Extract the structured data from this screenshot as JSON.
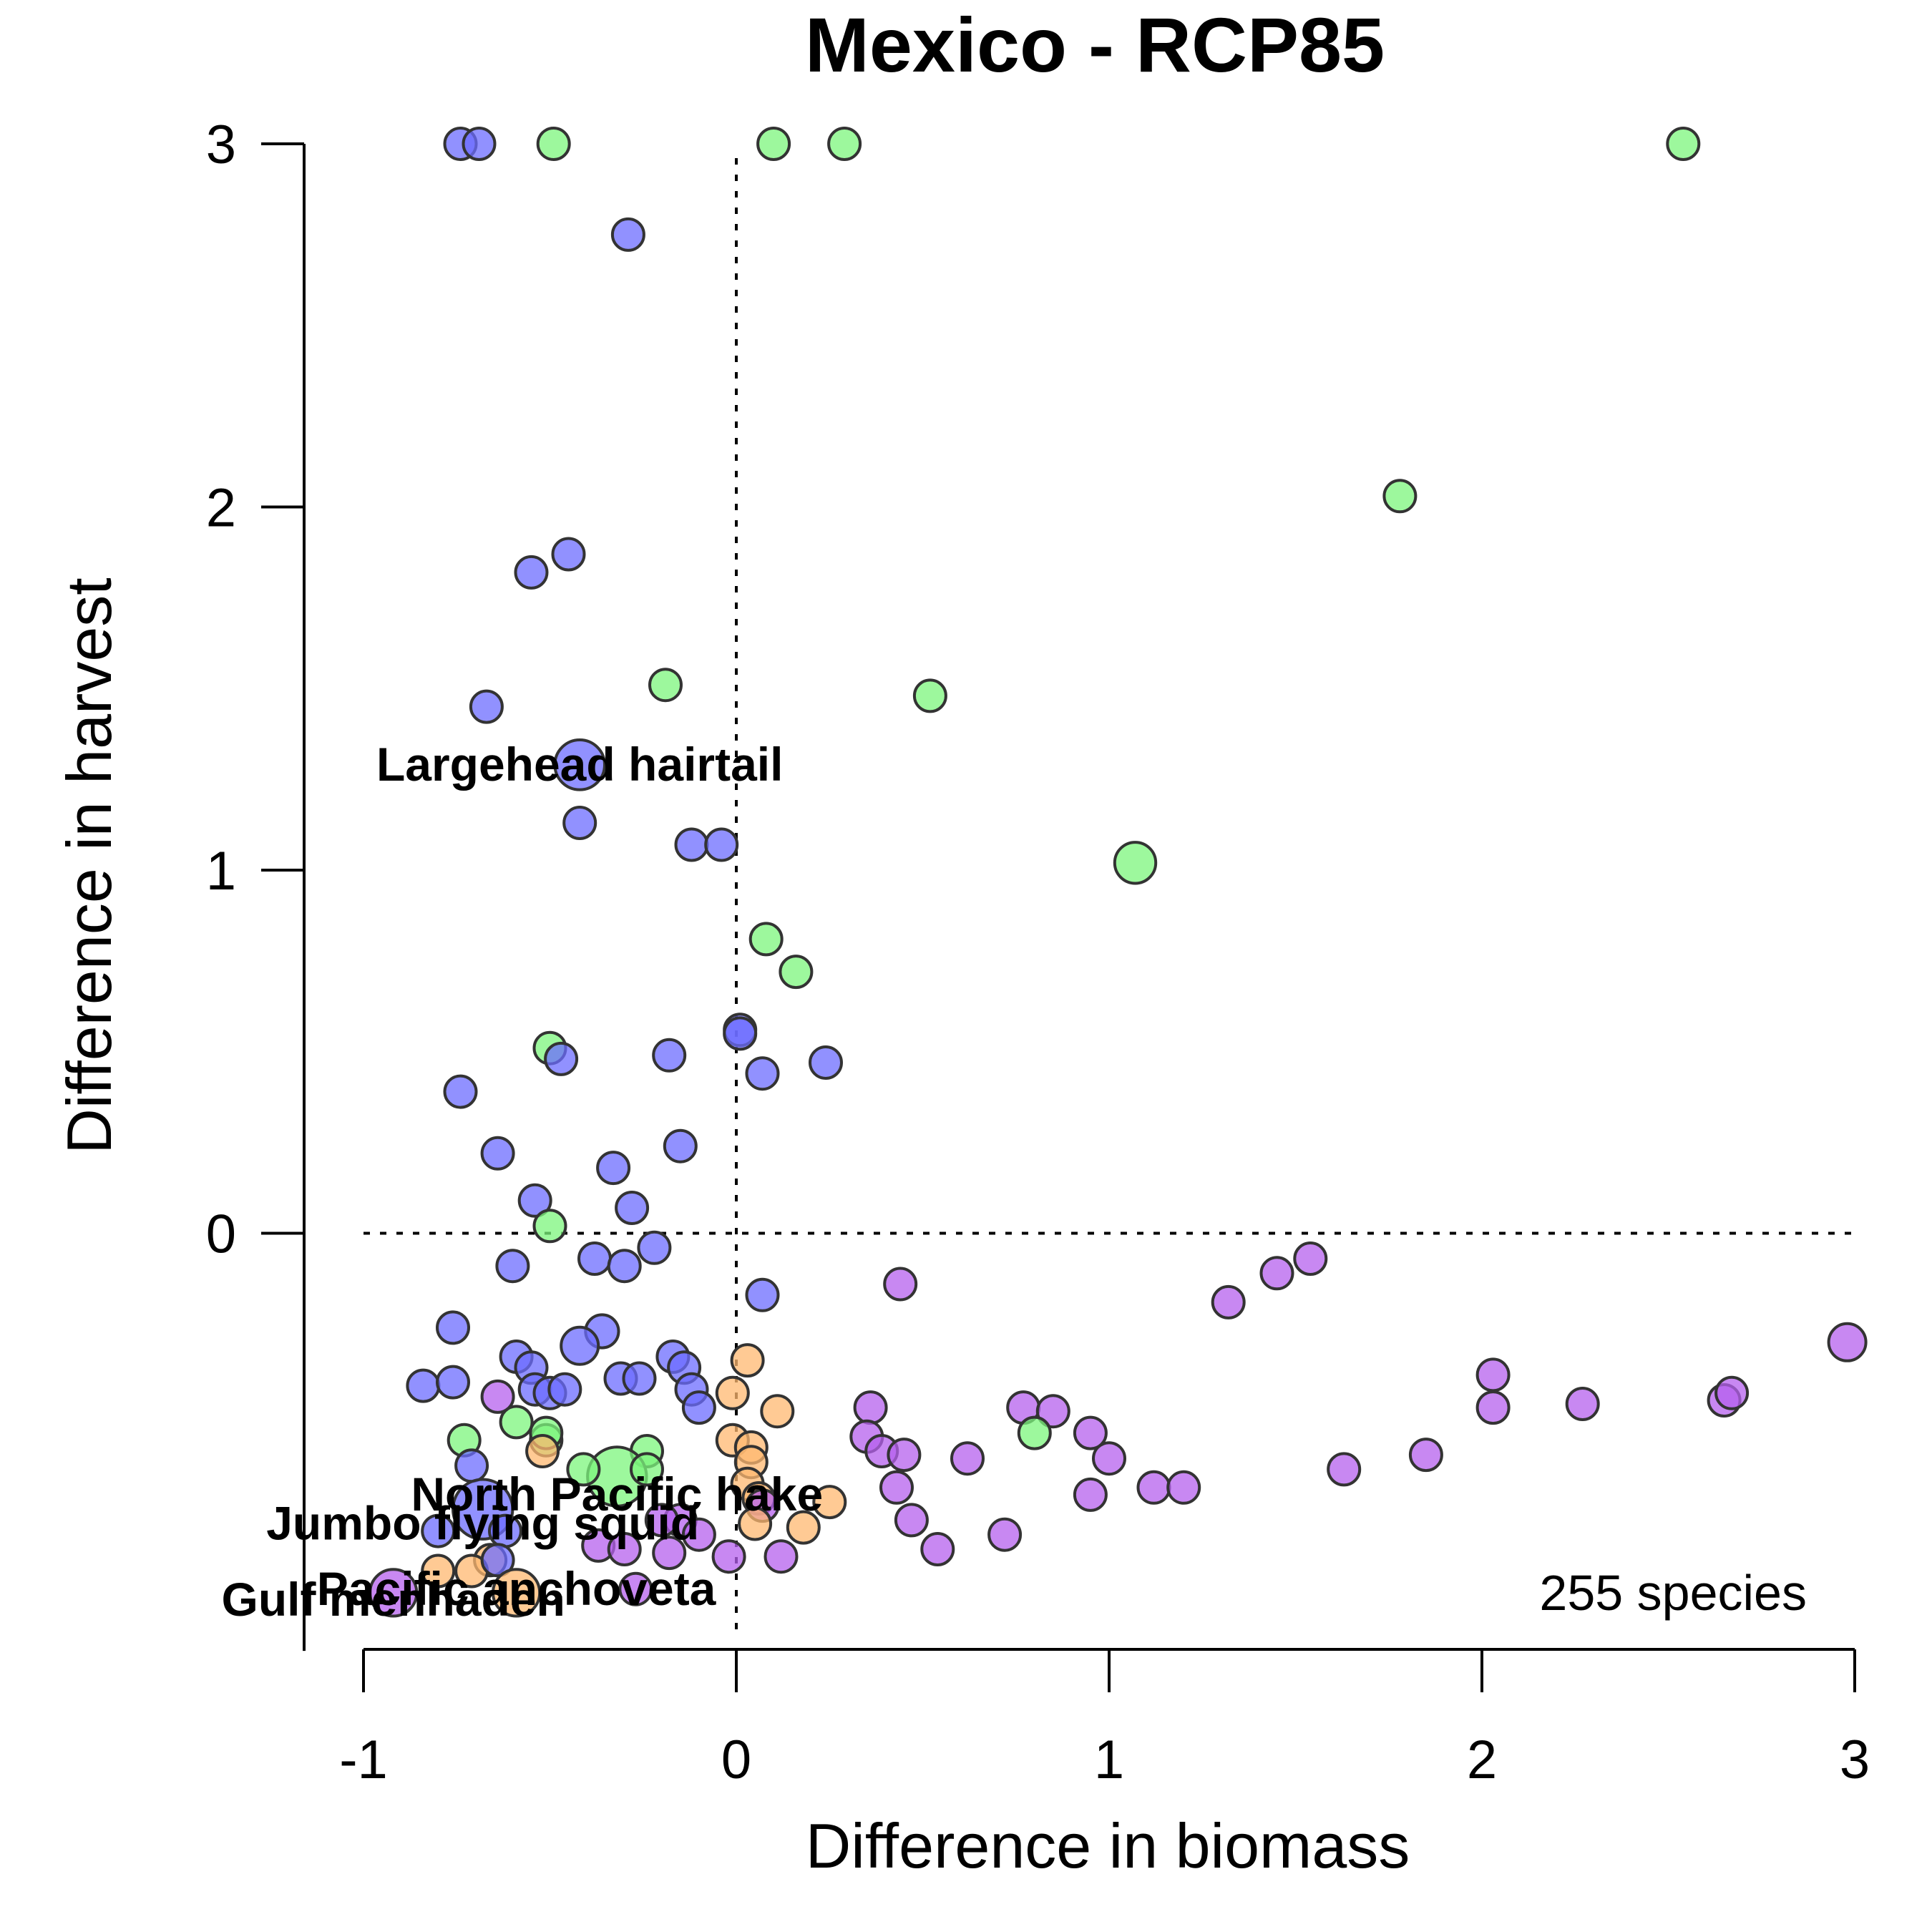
{
  "chart_data": {
    "type": "scatter",
    "title": "Mexico - RCP85",
    "xlabel": "Difference in biomass",
    "ylabel": "Difference in harvest",
    "xlim": [
      -1,
      3
    ],
    "ylim": [
      -1.15,
      3
    ],
    "xticks": [
      -1,
      0,
      1,
      2,
      3
    ],
    "yticks": [
      0,
      1,
      2,
      3
    ],
    "xtick_labels": [
      "-1",
      "0",
      "1",
      "2",
      "3"
    ],
    "ytick_labels": [
      "0",
      "1",
      "2",
      "3"
    ],
    "reference_lines": {
      "x": 0,
      "y": 0,
      "style": "dotted"
    },
    "annotation": "255 species",
    "colors": {
      "blue": "#6c6cff",
      "green": "#7cf57c",
      "purple": "#b560ee",
      "orange": "#ffb870"
    },
    "points": [
      {
        "x": -0.74,
        "y": 3.0,
        "s": 1,
        "c": "blue"
      },
      {
        "x": -0.69,
        "y": 3.0,
        "s": 1,
        "c": "blue"
      },
      {
        "x": -0.49,
        "y": 3.0,
        "s": 1,
        "c": "green"
      },
      {
        "x": 0.1,
        "y": 3.0,
        "s": 1,
        "c": "green"
      },
      {
        "x": 0.29,
        "y": 3.0,
        "s": 1,
        "c": "green"
      },
      {
        "x": 2.54,
        "y": 3.0,
        "s": 1,
        "c": "green"
      },
      {
        "x": -0.29,
        "y": 2.75,
        "s": 1,
        "c": "blue"
      },
      {
        "x": 1.78,
        "y": 2.03,
        "s": 1,
        "c": "green"
      },
      {
        "x": -0.45,
        "y": 1.87,
        "s": 1,
        "c": "blue"
      },
      {
        "x": -0.55,
        "y": 1.82,
        "s": 1,
        "c": "blue"
      },
      {
        "x": -0.19,
        "y": 1.51,
        "s": 1,
        "c": "green"
      },
      {
        "x": 0.52,
        "y": 1.48,
        "s": 1,
        "c": "green"
      },
      {
        "x": -0.67,
        "y": 1.45,
        "s": 1,
        "c": "blue"
      },
      {
        "x": -0.42,
        "y": 1.29,
        "s": 2.5,
        "c": "blue"
      },
      {
        "x": -0.42,
        "y": 1.13,
        "s": 1,
        "c": "blue"
      },
      {
        "x": -0.12,
        "y": 1.07,
        "s": 1,
        "c": "blue"
      },
      {
        "x": -0.04,
        "y": 1.07,
        "s": 1,
        "c": "blue"
      },
      {
        "x": 1.07,
        "y": 1.02,
        "s": 1.7,
        "c": "green"
      },
      {
        "x": 0.08,
        "y": 0.81,
        "s": 1,
        "c": "green"
      },
      {
        "x": 0.16,
        "y": 0.72,
        "s": 1,
        "c": "green"
      },
      {
        "x": 0.01,
        "y": 0.56,
        "s": 1,
        "c": "blue"
      },
      {
        "x": 0.01,
        "y": 0.55,
        "s": 1,
        "c": "blue"
      },
      {
        "x": -0.5,
        "y": 0.51,
        "s": 1,
        "c": "green"
      },
      {
        "x": -0.47,
        "y": 0.48,
        "s": 1,
        "c": "blue"
      },
      {
        "x": -0.18,
        "y": 0.49,
        "s": 1,
        "c": "blue"
      },
      {
        "x": 0.07,
        "y": 0.44,
        "s": 1,
        "c": "blue"
      },
      {
        "x": 0.24,
        "y": 0.47,
        "s": 1,
        "c": "blue"
      },
      {
        "x": -0.74,
        "y": 0.39,
        "s": 1,
        "c": "blue"
      },
      {
        "x": -0.64,
        "y": 0.22,
        "s": 1,
        "c": "blue"
      },
      {
        "x": -0.15,
        "y": 0.24,
        "s": 1,
        "c": "blue"
      },
      {
        "x": -0.33,
        "y": 0.18,
        "s": 1,
        "c": "blue"
      },
      {
        "x": -0.54,
        "y": 0.09,
        "s": 1,
        "c": "blue"
      },
      {
        "x": -0.28,
        "y": 0.07,
        "s": 1,
        "c": "blue"
      },
      {
        "x": -0.5,
        "y": 0.02,
        "s": 1,
        "c": "green"
      },
      {
        "x": -0.38,
        "y": -0.07,
        "s": 1,
        "c": "blue"
      },
      {
        "x": -0.3,
        "y": -0.09,
        "s": 1,
        "c": "blue"
      },
      {
        "x": -0.22,
        "y": -0.04,
        "s": 1,
        "c": "blue"
      },
      {
        "x": -0.6,
        "y": -0.09,
        "s": 1,
        "c": "blue"
      },
      {
        "x": 0.07,
        "y": -0.17,
        "s": 1,
        "c": "blue"
      },
      {
        "x": 0.44,
        "y": -0.14,
        "s": 1,
        "c": "purple"
      },
      {
        "x": 1.32,
        "y": -0.19,
        "s": 1,
        "c": "purple"
      },
      {
        "x": 1.45,
        "y": -0.11,
        "s": 1,
        "c": "purple"
      },
      {
        "x": 1.54,
        "y": -0.07,
        "s": 1,
        "c": "purple"
      },
      {
        "x": 2.98,
        "y": -0.3,
        "s": 1.4,
        "c": "purple"
      },
      {
        "x": -0.76,
        "y": -0.26,
        "s": 1,
        "c": "blue"
      },
      {
        "x": -0.36,
        "y": -0.27,
        "s": 1.1,
        "c": "blue"
      },
      {
        "x": -0.42,
        "y": -0.31,
        "s": 1.4,
        "c": "blue"
      },
      {
        "x": -0.59,
        "y": -0.34,
        "s": 1,
        "c": "blue"
      },
      {
        "x": -0.55,
        "y": -0.37,
        "s": 1,
        "c": "blue"
      },
      {
        "x": -0.17,
        "y": -0.34,
        "s": 1,
        "c": "blue"
      },
      {
        "x": -0.14,
        "y": -0.37,
        "s": 1,
        "c": "blue"
      },
      {
        "x": 0.03,
        "y": -0.35,
        "s": 1,
        "c": "orange"
      },
      {
        "x": -0.31,
        "y": -0.4,
        "s": 1,
        "c": "blue"
      },
      {
        "x": -0.26,
        "y": -0.4,
        "s": 1,
        "c": "blue"
      },
      {
        "x": -0.84,
        "y": -0.42,
        "s": 1,
        "c": "blue"
      },
      {
        "x": -0.76,
        "y": -0.41,
        "s": 1,
        "c": "blue"
      },
      {
        "x": -0.54,
        "y": -0.43,
        "s": 1,
        "c": "blue"
      },
      {
        "x": -0.5,
        "y": -0.44,
        "s": 1,
        "c": "blue"
      },
      {
        "x": -0.46,
        "y": -0.43,
        "s": 1,
        "c": "blue"
      },
      {
        "x": -0.64,
        "y": -0.45,
        "s": 1,
        "c": "purple"
      },
      {
        "x": -0.12,
        "y": -0.43,
        "s": 1,
        "c": "blue"
      },
      {
        "x": -0.1,
        "y": -0.48,
        "s": 1,
        "c": "blue"
      },
      {
        "x": -0.01,
        "y": -0.44,
        "s": 1,
        "c": "orange"
      },
      {
        "x": 0.11,
        "y": -0.49,
        "s": 1,
        "c": "orange"
      },
      {
        "x": 0.36,
        "y": -0.48,
        "s": 1,
        "c": "purple"
      },
      {
        "x": 0.77,
        "y": -0.48,
        "s": 1,
        "c": "purple"
      },
      {
        "x": 0.85,
        "y": -0.49,
        "s": 1,
        "c": "purple"
      },
      {
        "x": 2.03,
        "y": -0.39,
        "s": 1,
        "c": "purple"
      },
      {
        "x": 2.03,
        "y": -0.48,
        "s": 1,
        "c": "purple"
      },
      {
        "x": 2.27,
        "y": -0.47,
        "s": 1,
        "c": "purple"
      },
      {
        "x": 2.65,
        "y": -0.46,
        "s": 1,
        "c": "purple"
      },
      {
        "x": 2.67,
        "y": -0.44,
        "s": 1,
        "c": "purple"
      },
      {
        "x": -0.59,
        "y": -0.52,
        "s": 1,
        "c": "green"
      },
      {
        "x": -0.51,
        "y": -0.57,
        "s": 1,
        "c": "green"
      },
      {
        "x": -0.51,
        "y": -0.55,
        "s": 1,
        "c": "green"
      },
      {
        "x": -0.73,
        "y": -0.57,
        "s": 1,
        "c": "green"
      },
      {
        "x": -0.71,
        "y": -0.64,
        "s": 1,
        "c": "blue"
      },
      {
        "x": 0.35,
        "y": -0.56,
        "s": 1,
        "c": "purple"
      },
      {
        "x": 0.39,
        "y": -0.6,
        "s": 1,
        "c": "purple"
      },
      {
        "x": 0.45,
        "y": -0.61,
        "s": 1,
        "c": "purple"
      },
      {
        "x": 0.62,
        "y": -0.62,
        "s": 1,
        "c": "purple"
      },
      {
        "x": 0.8,
        "y": -0.55,
        "s": 1,
        "c": "green"
      },
      {
        "x": 0.95,
        "y": -0.55,
        "s": 1,
        "c": "purple"
      },
      {
        "x": 1.0,
        "y": -0.62,
        "s": 1,
        "c": "purple"
      },
      {
        "x": 1.63,
        "y": -0.65,
        "s": 1,
        "c": "purple"
      },
      {
        "x": 1.85,
        "y": -0.61,
        "s": 1,
        "c": "purple"
      },
      {
        "x": -0.52,
        "y": -0.6,
        "s": 1,
        "c": "orange"
      },
      {
        "x": -0.01,
        "y": -0.57,
        "s": 1,
        "c": "orange"
      },
      {
        "x": 0.04,
        "y": -0.59,
        "s": 1,
        "c": "orange"
      },
      {
        "x": 0.04,
        "y": -0.63,
        "s": 1,
        "c": "orange"
      },
      {
        "x": -0.24,
        "y": -0.6,
        "s": 1,
        "c": "green"
      },
      {
        "x": -0.32,
        "y": -0.67,
        "s": 3.5,
        "c": "green"
      },
      {
        "x": -0.41,
        "y": -0.65,
        "s": 1,
        "c": "green"
      },
      {
        "x": -0.24,
        "y": -0.65,
        "s": 1,
        "c": "green"
      },
      {
        "x": 0.03,
        "y": -0.69,
        "s": 1,
        "c": "orange"
      },
      {
        "x": 0.06,
        "y": -0.73,
        "s": 1,
        "c": "orange"
      },
      {
        "x": 0.07,
        "y": -0.75,
        "s": 1,
        "c": "purple"
      },
      {
        "x": 0.25,
        "y": -0.74,
        "s": 1,
        "c": "orange"
      },
      {
        "x": 0.43,
        "y": -0.7,
        "s": 1,
        "c": "purple"
      },
      {
        "x": 0.95,
        "y": -0.72,
        "s": 1,
        "c": "purple"
      },
      {
        "x": 1.12,
        "y": -0.7,
        "s": 1,
        "c": "purple"
      },
      {
        "x": 1.2,
        "y": -0.7,
        "s": 1,
        "c": "purple"
      },
      {
        "x": -0.68,
        "y": -0.76,
        "s": 3.6,
        "c": "blue"
      },
      {
        "x": -0.8,
        "y": -0.82,
        "s": 1,
        "c": "blue"
      },
      {
        "x": -0.62,
        "y": -0.82,
        "s": 1,
        "c": "blue"
      },
      {
        "x": -0.15,
        "y": -0.79,
        "s": 1,
        "c": "purple"
      },
      {
        "x": -0.2,
        "y": -0.79,
        "s": 1,
        "c": "purple"
      },
      {
        "x": -0.1,
        "y": -0.83,
        "s": 1,
        "c": "purple"
      },
      {
        "x": 0.05,
        "y": -0.8,
        "s": 1,
        "c": "orange"
      },
      {
        "x": 0.18,
        "y": -0.81,
        "s": 1,
        "c": "orange"
      },
      {
        "x": 0.47,
        "y": -0.79,
        "s": 1,
        "c": "purple"
      },
      {
        "x": 0.72,
        "y": -0.83,
        "s": 1,
        "c": "purple"
      },
      {
        "x": -0.37,
        "y": -0.86,
        "s": 1,
        "c": "purple"
      },
      {
        "x": -0.3,
        "y": -0.87,
        "s": 1,
        "c": "purple"
      },
      {
        "x": -0.18,
        "y": -0.88,
        "s": 1,
        "c": "purple"
      },
      {
        "x": -0.02,
        "y": -0.89,
        "s": 1,
        "c": "purple"
      },
      {
        "x": 0.12,
        "y": -0.89,
        "s": 1,
        "c": "purple"
      },
      {
        "x": 0.54,
        "y": -0.87,
        "s": 1,
        "c": "purple"
      },
      {
        "x": -0.66,
        "y": -0.9,
        "s": 1,
        "c": "orange"
      },
      {
        "x": -0.8,
        "y": -0.93,
        "s": 1,
        "c": "orange"
      },
      {
        "x": -0.71,
        "y": -0.93,
        "s": 1,
        "c": "orange"
      },
      {
        "x": -0.64,
        "y": -0.9,
        "s": 1,
        "c": "blue"
      },
      {
        "x": -0.27,
        "y": -0.98,
        "s": 1,
        "c": "purple"
      },
      {
        "x": -0.59,
        "y": -0.99,
        "s": 2.2,
        "c": "orange"
      },
      {
        "x": -0.92,
        "y": -0.99,
        "s": 2.2,
        "c": "purple"
      }
    ],
    "labels": [
      {
        "text": "Largehead hairtail",
        "x": -0.42,
        "y": 1.29
      },
      {
        "text": "North Pacific hake",
        "x": -0.32,
        "y": -0.72
      },
      {
        "text": "Jumbo flying squid",
        "x": -0.68,
        "y": -0.8
      },
      {
        "text": "Pacific anchoveta",
        "x": -0.59,
        "y": -0.98
      },
      {
        "text": "Gulf menhaden",
        "x": -0.92,
        "y": -1.01
      }
    ]
  }
}
